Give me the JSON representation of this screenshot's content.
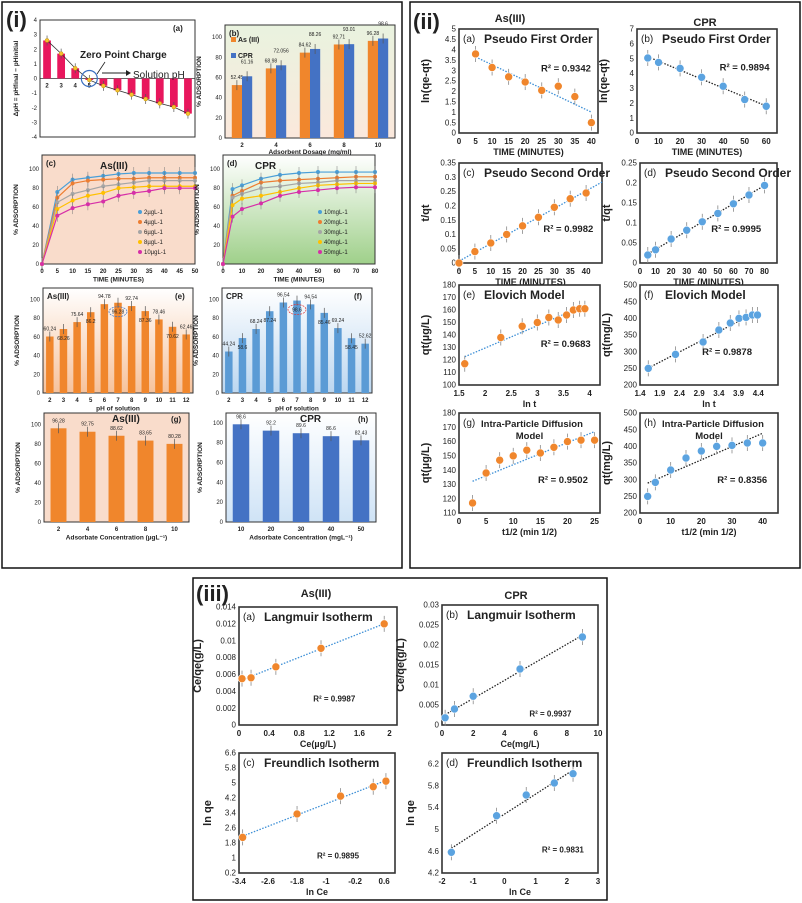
{
  "figure": {
    "panels": [
      {
        "label": "(i)"
      },
      {
        "label": "(ii)",
        "col_headers": [
          "As(III)",
          "CPR"
        ]
      },
      {
        "label": "(iii)",
        "col_headers": [
          "As(III)",
          "CPR"
        ]
      }
    ]
  },
  "colors": {
    "as": "#f0862c",
    "cpr": "#5ba3e0",
    "cpr_dark": "#4472c4",
    "zpc": "#e8175d"
  },
  "chart_data": [
    {
      "id": "i-a",
      "type": "bar",
      "panel_label": "(a)",
      "title": "",
      "categories": [
        2,
        3,
        4,
        5,
        6,
        7,
        8,
        9,
        10,
        11,
        12
      ],
      "series": [
        {
          "values": [
            2.6,
            1.7,
            0.7,
            -0.1,
            -0.5,
            -0.8,
            -1.1,
            -1.4,
            -1.7,
            -1.95,
            -2.4
          ],
          "color": "#e8175d"
        }
      ],
      "ylim": [
        -4,
        4
      ],
      "yticks": [
        -4,
        -3,
        -2,
        -1,
        0,
        1,
        2,
        3,
        4
      ],
      "xlabel": "",
      "ylabel": "ΔpH = pHfinal − pHinitial",
      "annotations": [
        "Zero Point Charge",
        "Solution pH"
      ]
    },
    {
      "id": "i-b",
      "type": "bar",
      "panel_label": "(b)",
      "title": "",
      "categories": [
        2,
        4,
        6,
        8,
        10
      ],
      "series": [
        {
          "name": "As (III)",
          "values": [
            52.45,
            68.98,
            84.62,
            92.71,
            96.28
          ],
          "color": "#f0862c"
        },
        {
          "name": "CPR",
          "values": [
            61.16,
            72.056,
            88.26,
            93.01,
            98.6
          ],
          "color": "#4472c4"
        }
      ],
      "show_labels": true,
      "ylim": [
        0,
        112
      ],
      "yticks": [
        0,
        20,
        40,
        60,
        80,
        100
      ],
      "xlabel": "Adsorbent Dosage (mg/ml)",
      "ylabel": "% ADSORPTION",
      "legend": "top-left"
    },
    {
      "id": "i-c",
      "type": "line",
      "panel_label": "(c)",
      "title": "As(III)",
      "x": [
        0,
        5,
        10,
        15,
        20,
        25,
        30,
        35,
        40,
        45,
        50
      ],
      "series": [
        {
          "name": "2µgL-1",
          "values": [
            0,
            76,
            89,
            91,
            93,
            95,
            96,
            96,
            96,
            96,
            96
          ],
          "color": "#4a9fd8",
          "marker": "circle"
        },
        {
          "name": "4µgL-1",
          "values": [
            0,
            70,
            85,
            88,
            89,
            90,
            90,
            91,
            91,
            91,
            91
          ],
          "color": "#ed7d31",
          "marker": "square"
        },
        {
          "name": "6µgL-1",
          "values": [
            0,
            65,
            74,
            78,
            82,
            84,
            86,
            88,
            88,
            88,
            88
          ],
          "color": "#a5a5a5",
          "marker": "triangle"
        },
        {
          "name": "8µgL-1",
          "values": [
            0,
            58,
            67,
            72,
            75,
            80,
            81,
            82,
            82,
            82,
            82
          ],
          "color": "#ffc000",
          "marker": "dash"
        },
        {
          "name": "10µgL-1",
          "values": [
            0,
            51,
            59,
            63,
            66,
            72,
            75,
            77,
            80,
            80,
            80
          ],
          "color": "#d62fa8",
          "marker": "diamond"
        }
      ],
      "xlim": [
        0,
        50
      ],
      "xticks": [
        0,
        5,
        10,
        15,
        20,
        25,
        30,
        35,
        40,
        45,
        50
      ],
      "ylim": [
        0,
        115
      ],
      "yticks": [
        0,
        20,
        40,
        60,
        80,
        100
      ],
      "xlabel": "TIME (MINUTES)",
      "ylabel": "% ADSORPTION",
      "legend": "right"
    },
    {
      "id": "i-d",
      "type": "line",
      "panel_label": "(d)",
      "title": "CPR",
      "x": [
        0,
        5,
        10,
        20,
        30,
        40,
        50,
        60,
        70,
        80
      ],
      "series": [
        {
          "name": "10mgL-1",
          "values": [
            0,
            79,
            83,
            90,
            94,
            96,
            97,
            97,
            97,
            97
          ],
          "color": "#4a9fd8",
          "marker": "circle"
        },
        {
          "name": "20mgL-1",
          "values": [
            0,
            72,
            77,
            86,
            88,
            89,
            90,
            91,
            92,
            92
          ],
          "color": "#ed7d31",
          "marker": "square"
        },
        {
          "name": "30mgL-1",
          "values": [
            0,
            70,
            74,
            80,
            82,
            85,
            86,
            88,
            88,
            88
          ],
          "color": "#a5a5a5",
          "marker": "triangle"
        },
        {
          "name": "40mgL-1",
          "values": [
            0,
            62,
            69,
            72,
            76,
            80,
            83,
            84,
            85,
            85
          ],
          "color": "#ffc000",
          "marker": "dash"
        },
        {
          "name": "50mgL-1",
          "values": [
            0,
            50,
            58,
            64,
            72,
            76,
            78,
            80,
            81,
            81
          ],
          "color": "#d62fa8",
          "marker": "diamond"
        }
      ],
      "xlim": [
        0,
        80
      ],
      "xticks": [
        0,
        10,
        20,
        30,
        40,
        50,
        60,
        70,
        80
      ],
      "ylim": [
        0,
        115
      ],
      "yticks": [
        0,
        20,
        40,
        60,
        80,
        100
      ],
      "xlabel": "TIME (MINUTES)",
      "ylabel": "% ADSORPTION",
      "legend": "right"
    },
    {
      "id": "i-e",
      "type": "bar",
      "panel_label": "(e)",
      "title": "As(III)",
      "categories": [
        2,
        3,
        4,
        5,
        6,
        7,
        8,
        9,
        10,
        11,
        12
      ],
      "series": [
        {
          "values": [
            60.24,
            68.26,
            75.64,
            86.2,
            94.78,
            96.28,
            92.74,
            87.36,
            78.46,
            70.62,
            62.46
          ],
          "color": "#f0862c"
        }
      ],
      "show_labels": true,
      "ylim": [
        0,
        112
      ],
      "yticks": [
        0,
        20,
        40,
        60,
        80,
        100
      ],
      "xlabel": "pH of solution",
      "ylabel": "% ADSORPTION"
    },
    {
      "id": "i-f",
      "type": "bar",
      "panel_label": "(f)",
      "title": "CPR",
      "categories": [
        2,
        3,
        4,
        5,
        6,
        7,
        8,
        9,
        10,
        11,
        12
      ],
      "series": [
        {
          "values": [
            44.24,
            58.6,
            68.24,
            87.24,
            96.54,
            98.6,
            94.54,
            85.46,
            69.24,
            58.45,
            52.62
          ],
          "color": "#5b9bd5"
        }
      ],
      "show_labels": true,
      "ylim": [
        0,
        112
      ],
      "yticks": [
        0,
        20,
        40,
        60,
        80,
        100
      ],
      "xlabel": "pH of solution",
      "ylabel": "% ADSORPTION"
    },
    {
      "id": "i-g",
      "type": "bar",
      "panel_label": "(g)",
      "title": "As(III)",
      "categories": [
        2,
        4,
        6,
        8,
        10
      ],
      "series": [
        {
          "values": [
            96.28,
            92.75,
            88.62,
            83.65,
            80.28
          ],
          "color": "#f0862c"
        }
      ],
      "show_labels": true,
      "ylim": [
        0,
        112
      ],
      "yticks": [
        0,
        20,
        40,
        60,
        80,
        100
      ],
      "xlabel": "Adsorbate Concentration (µgL⁻¹)",
      "ylabel": "% ADSORPTION"
    },
    {
      "id": "i-h",
      "type": "bar",
      "panel_label": "(h)",
      "title": "CPR",
      "categories": [
        10,
        20,
        30,
        40,
        50
      ],
      "series": [
        {
          "values": [
            98.6,
            92.2,
            89.6,
            86.6,
            82.43
          ],
          "color": "#4472c4"
        }
      ],
      "show_labels": true,
      "ylim": [
        0,
        110
      ],
      "yticks": [
        0,
        20,
        40,
        60,
        80,
        100
      ],
      "xlabel": "Adsorbate Concentration (mgL⁻¹)",
      "ylabel": "% ADSORPTION"
    },
    {
      "id": "ii-a",
      "type": "scatter",
      "panel_label": "(a)",
      "title": "Pseudo First Order",
      "x": [
        5,
        10,
        15,
        20,
        25,
        30,
        35,
        40
      ],
      "y": [
        3.8,
        3.15,
        2.7,
        2.45,
        2.05,
        2.25,
        1.75,
        0.5
      ],
      "xlim": [
        0,
        42
      ],
      "xticks": [
        0,
        5,
        10,
        15,
        20,
        25,
        30,
        35,
        40
      ],
      "ylim": [
        0,
        5
      ],
      "yticks": [
        0,
        0.5,
        1,
        1.5,
        2,
        2.5,
        3,
        3.5,
        4,
        4.5,
        5
      ],
      "xlabel": "TIME (MINUTES)",
      "ylabel": "ln(qe-qt)",
      "r2": "R² = 0.9342",
      "color": "#f0862c",
      "fit_color": "#3d8fd6"
    },
    {
      "id": "ii-b",
      "type": "scatter",
      "panel_label": "(b)",
      "title": "Pseudo First Order",
      "x": [
        5,
        10,
        20,
        30,
        40,
        50,
        60
      ],
      "y": [
        5.05,
        4.75,
        4.35,
        3.75,
        3.15,
        2.25,
        1.8
      ],
      "xlim": [
        0,
        65
      ],
      "xticks": [
        0,
        10,
        20,
        30,
        40,
        50,
        60
      ],
      "ylim": [
        0,
        7
      ],
      "yticks": [
        0,
        1,
        2,
        3,
        4,
        5,
        6,
        7
      ],
      "xlabel": "TIME (MINUTES)",
      "ylabel": "ln(qe-qt)",
      "r2": "R² = 0.9894",
      "color": "#5ba3e0",
      "fit_color": "#222"
    },
    {
      "id": "ii-c",
      "type": "scatter",
      "panel_label": "(c)",
      "title": "Pseudo Second Order",
      "x": [
        0,
        5,
        10,
        15,
        20,
        25,
        30,
        35,
        40
      ],
      "y": [
        0,
        0.04,
        0.07,
        0.1,
        0.13,
        0.16,
        0.195,
        0.225,
        0.245
      ],
      "xlim": [
        0,
        45
      ],
      "xticks": [
        0,
        5,
        10,
        15,
        20,
        25,
        30,
        35,
        40
      ],
      "ylim": [
        0,
        0.35
      ],
      "yticks": [
        0,
        0.05,
        0.1,
        0.15,
        0.2,
        0.25,
        0.3,
        0.35
      ],
      "xlabel": "TIME (MINUTES)",
      "ylabel": "t/qt",
      "r2": "R² = 0.9982",
      "color": "#f0862c",
      "fit_color": "#3d8fd6"
    },
    {
      "id": "ii-d",
      "type": "scatter",
      "panel_label": "(d)",
      "title": "Pseudo Second Order",
      "x": [
        5,
        10,
        20,
        30,
        40,
        50,
        60,
        70,
        80
      ],
      "y": [
        0.02,
        0.033,
        0.06,
        0.082,
        0.103,
        0.124,
        0.148,
        0.17,
        0.194
      ],
      "xlim": [
        0,
        88
      ],
      "xticks": [
        0,
        10,
        20,
        30,
        40,
        50,
        60,
        70,
        80
      ],
      "ylim": [
        0,
        0.25
      ],
      "yticks": [
        0,
        0.05,
        0.1,
        0.15,
        0.2,
        0.25
      ],
      "xlabel": "TIME (MINUTES)",
      "ylabel": "t/qt",
      "r2": "R² = 0.9995",
      "color": "#5ba3e0",
      "fit_color": "#222"
    },
    {
      "id": "ii-e",
      "type": "scatter",
      "panel_label": "(e)",
      "title": "Elovich Model",
      "x": [
        1.61,
        2.3,
        2.71,
        3.0,
        3.22,
        3.4,
        3.56,
        3.69,
        3.81,
        3.91
      ],
      "y": [
        117,
        138,
        147,
        150,
        154,
        152,
        156,
        160,
        161,
        161
      ],
      "xlim": [
        1.5,
        4.2
      ],
      "xticks": [
        1.5,
        2,
        2.5,
        3,
        3.5,
        4
      ],
      "ylim": [
        100,
        180
      ],
      "yticks": [
        100,
        110,
        120,
        130,
        140,
        150,
        160,
        170,
        180
      ],
      "xlabel": "ln t",
      "ylabel": "qt(µg/L)",
      "r2": "R² = 0.9683",
      "color": "#f0862c",
      "fit_color": "#3d8fd6"
    },
    {
      "id": "ii-f",
      "type": "scatter",
      "panel_label": "(f)",
      "title": "Elovich Model",
      "x": [
        1.61,
        2.3,
        3.0,
        3.4,
        3.69,
        3.91,
        4.09,
        4.25,
        4.38
      ],
      "y": [
        250,
        292,
        329,
        365,
        386,
        400,
        403,
        410,
        410
      ],
      "xlim": [
        1.4,
        4.9
      ],
      "xticks": [
        1.4,
        1.9,
        2.4,
        2.9,
        3.4,
        3.9,
        4.4
      ],
      "ylim": [
        200,
        500
      ],
      "yticks": [
        200,
        250,
        300,
        350,
        400,
        450,
        500
      ],
      "xlabel": "ln t",
      "ylabel": "qt(mg/L)",
      "r2": "R² = 0.9878",
      "color": "#5ba3e0",
      "fit_color": "#222"
    },
    {
      "id": "ii-g",
      "type": "scatter",
      "panel_label": "(g)",
      "title": "Intra-Particle Diffusion",
      "title2": "Model",
      "x": [
        2.5,
        5,
        7.5,
        10,
        12.5,
        15,
        17.5,
        20,
        22.5,
        25
      ],
      "y": [
        117,
        138,
        147,
        150,
        154,
        152,
        156,
        160,
        161,
        161
      ],
      "xlim": [
        0,
        26
      ],
      "xticks": [
        0,
        5,
        10,
        15,
        20,
        25
      ],
      "ylim": [
        110,
        180
      ],
      "yticks": [
        110,
        120,
        130,
        140,
        150,
        160,
        170,
        180
      ],
      "xlabel": "t1/2 (min 1/2)",
      "ylabel": "qt(µg/L)",
      "r2": "R² = 0.9502",
      "color": "#f0862c",
      "fit_color": "#3d8fd6"
    },
    {
      "id": "ii-h",
      "type": "scatter",
      "panel_label": "(h)",
      "title": "Intra-Particle Diffusion",
      "title2": "Model",
      "x": [
        2.5,
        5,
        10,
        15,
        20,
        25,
        30,
        35,
        40
      ],
      "y": [
        250,
        292,
        329,
        365,
        386,
        400,
        403,
        410,
        410
      ],
      "xlim": [
        0,
        45
      ],
      "xticks": [
        0,
        10,
        20,
        30,
        40
      ],
      "ylim": [
        200,
        500
      ],
      "yticks": [
        200,
        250,
        300,
        350,
        400,
        450,
        500
      ],
      "xlabel": "t1/2 (min 1/2)",
      "ylabel": "qt(mg/L)",
      "r2": "R² = 0.8356",
      "color": "#5ba3e0",
      "fit_color": "#222"
    },
    {
      "id": "iii-a",
      "type": "scatter",
      "panel_label": "(a)",
      "title": "Langmuir Isotherm",
      "x": [
        0.04,
        0.16,
        0.49,
        1.09,
        1.93
      ],
      "y": [
        0.0055,
        0.0056,
        0.0069,
        0.0091,
        0.012
      ],
      "xlim": [
        0,
        2.1
      ],
      "xticks": [
        0,
        0.4,
        0.8,
        1.2,
        1.6,
        2
      ],
      "ylim": [
        0,
        0.014
      ],
      "yticks": [
        0,
        0.002,
        0.004,
        0.006,
        0.008,
        0.01,
        0.012,
        0.014
      ],
      "xlabel": "Ce(µg/L)",
      "ylabel": "Ce/qe(g/L)",
      "r2": "R² = 0.9987",
      "color": "#f0862c",
      "fit_color": "#3d8fd6"
    },
    {
      "id": "iii-b",
      "type": "scatter",
      "panel_label": "(b)",
      "title": "Langmuir Isotherm",
      "x": [
        0.2,
        0.8,
        2,
        5,
        9
      ],
      "y": [
        0.0018,
        0.004,
        0.0072,
        0.014,
        0.022
      ],
      "xlim": [
        0,
        10
      ],
      "xticks": [
        0,
        2,
        4,
        6,
        8,
        10
      ],
      "ylim": [
        0,
        0.03
      ],
      "yticks": [
        0,
        0.005,
        0.01,
        0.015,
        0.02,
        0.025,
        0.03
      ],
      "xlabel": "Ce(mg/L)",
      "ylabel": "Ce/qe(g/L)",
      "r2": "R² = 0.9937",
      "color": "#5ba3e0",
      "fit_color": "#222"
    },
    {
      "id": "iii-c",
      "type": "scatter",
      "panel_label": "(c)",
      "title": "Freundlich Isotherm",
      "x": [
        -3.3,
        -1.8,
        -0.6,
        0.3,
        0.65
      ],
      "y": [
        2.1,
        3.35,
        4.3,
        4.8,
        5.1
      ],
      "xlim": [
        -3.4,
        0.9
      ],
      "xticks": [
        -3.4,
        -2.6,
        -1.8,
        -1,
        -0.2,
        0.6
      ],
      "ylim": [
        0.2,
        6.6
      ],
      "yticks": [
        0.2,
        1,
        1.8,
        2.6,
        3.4,
        4.2,
        5,
        5.8,
        6.6
      ],
      "xlabel": "ln Ce",
      "ylabel": "ln qe",
      "r2": "R² = 0.9895",
      "color": "#f0862c",
      "fit_color": "#3d8fd6"
    },
    {
      "id": "iii-d",
      "type": "scatter",
      "panel_label": "(d)",
      "title": "Freundlich Isotherm",
      "x": [
        -1.7,
        -0.25,
        0.7,
        1.6,
        2.2
      ],
      "y": [
        4.58,
        5.25,
        5.63,
        5.85,
        6.02
      ],
      "xlim": [
        -2,
        3
      ],
      "xticks": [
        -2,
        -1,
        0,
        1,
        2,
        3
      ],
      "ylim": [
        4.2,
        6.4
      ],
      "yticks": [
        4.2,
        4.6,
        5,
        5.4,
        5.8,
        6.2
      ],
      "xlabel": "ln Ce",
      "ylabel": "ln qe",
      "r2": "R² = 0.9831",
      "color": "#5ba3e0",
      "fit_color": "#222"
    }
  ]
}
